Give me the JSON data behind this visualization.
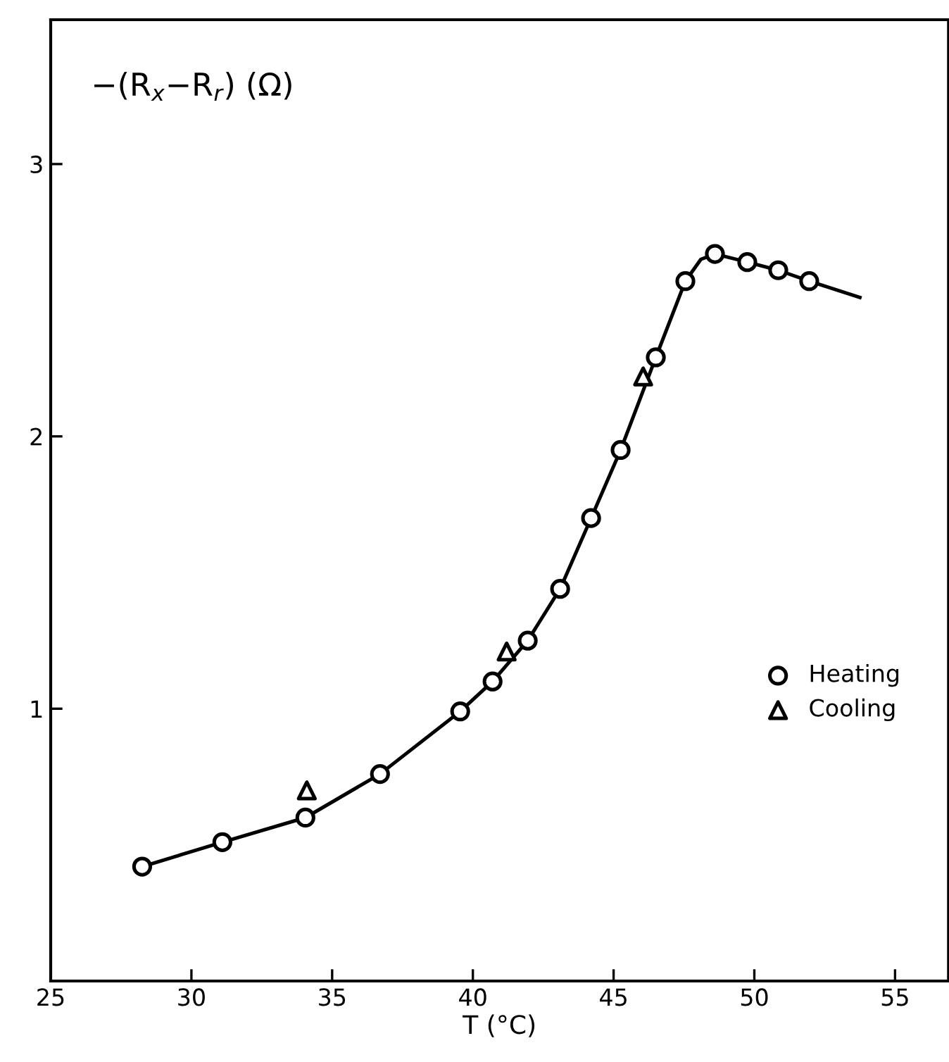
{
  "chart_data": {
    "type": "scatter",
    "xlabel": "T (°C)",
    "ylabel": "−(R$_{x}$−R$_{r}$) (Ω)",
    "xlim": [
      25,
      56.9
    ],
    "ylim": [
      0,
      3.53
    ],
    "xticks": [
      25,
      30,
      35,
      40,
      45,
      50,
      55
    ],
    "yticks": [
      1,
      2,
      3
    ],
    "grid": false,
    "legend": "right",
    "series": [
      {
        "name": "Heating",
        "color": "#000000",
        "marker": "circle",
        "x": [
          28.25,
          31.1,
          34.05,
          36.7,
          39.55,
          40.7,
          41.95,
          43.1,
          44.2,
          45.25,
          46.5,
          47.55,
          48.6,
          49.75,
          50.85,
          51.95
        ],
        "values": [
          0.42,
          0.51,
          0.6,
          0.76,
          0.99,
          1.1,
          1.25,
          1.44,
          1.7,
          1.95,
          2.29,
          2.57,
          2.67,
          2.64,
          2.61,
          2.57
        ]
      },
      {
        "name": "Cooling",
        "color": "#000000",
        "marker": "triangle",
        "x": [
          34.1,
          41.2,
          46.05
        ],
        "values": [
          0.7,
          1.21,
          2.22
        ]
      },
      {
        "type": "line",
        "color": "#000000",
        "line_style": "solid",
        "x": [
          28.25,
          31.1,
          34.05,
          36.7,
          39.55,
          40.7,
          41.95,
          43.1,
          44.2,
          45.25,
          46.5,
          47.55,
          48.1,
          48.6,
          49.75,
          50.85,
          51.95,
          53.75
        ],
        "values": [
          0.42,
          0.51,
          0.6,
          0.76,
          0.99,
          1.1,
          1.25,
          1.44,
          1.7,
          1.95,
          2.29,
          2.57,
          2.65,
          2.67,
          2.64,
          2.61,
          2.57,
          2.51
        ]
      }
    ]
  }
}
